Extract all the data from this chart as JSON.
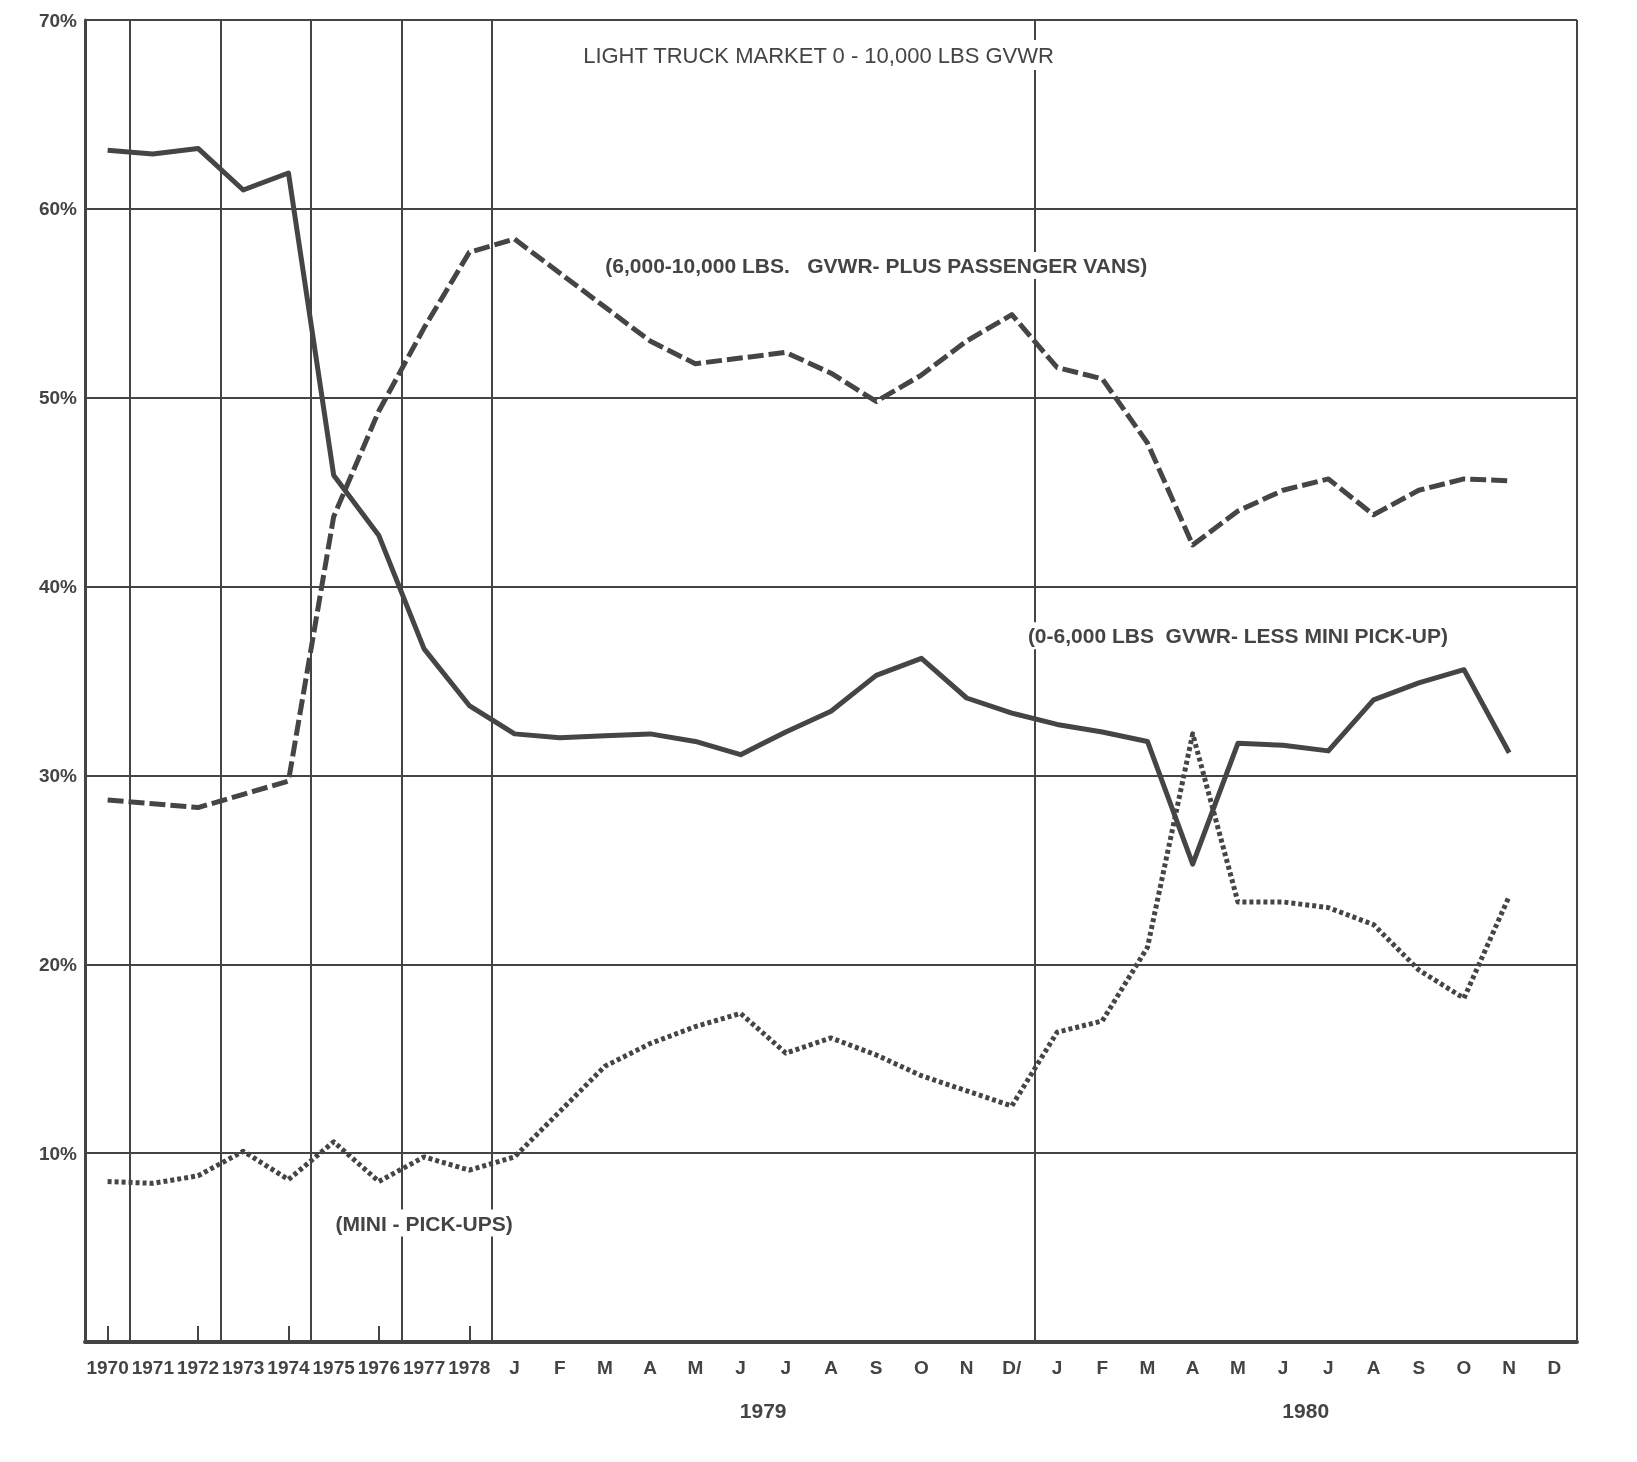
{
  "chart_data": {
    "type": "line",
    "title": "LIGHT TRUCK MARKET 0 - 10,000 LBS GVWR",
    "categories": [
      "1970",
      "1971",
      "1972",
      "1973",
      "1974",
      "1975",
      "1976",
      "1977",
      "1978",
      "J",
      "F",
      "M",
      "A",
      "M",
      "J",
      "J",
      "A",
      "S",
      "O",
      "N",
      "D/",
      "J",
      "F",
      "M",
      "A",
      "M",
      "J",
      "J",
      "A",
      "S",
      "O",
      "N",
      "D"
    ],
    "series": [
      {
        "name": "(6,000-10,000 LBS.   GVWR- PLUS PASSENGER VANS)",
        "color": "#454545",
        "line_style": "dashed",
        "values": [
          28.7,
          28.5,
          28.3,
          29.0,
          29.7,
          43.7,
          49.3,
          53.7,
          57.7,
          58.4,
          56.6,
          54.8,
          53.0,
          51.8,
          52.1,
          52.4,
          51.3,
          49.8,
          51.2,
          53.0,
          54.4,
          51.6,
          51.0,
          47.6,
          42.2,
          44.0,
          45.1,
          45.7,
          43.8,
          45.1,
          45.7,
          45.6,
          null
        ]
      },
      {
        "name": "(0-6,000 LBS  GVWR- LESS MINI PICK-UP)",
        "color": "#454545",
        "line_style": "solid",
        "values": [
          63.1,
          62.9,
          63.2,
          61.0,
          61.9,
          45.9,
          42.7,
          36.7,
          33.7,
          32.2,
          32.0,
          32.1,
          32.2,
          31.8,
          31.1,
          32.3,
          33.4,
          35.3,
          36.2,
          34.1,
          33.3,
          32.7,
          32.3,
          31.8,
          25.3,
          31.7,
          31.6,
          31.3,
          34.0,
          34.9,
          35.6,
          31.2,
          null
        ]
      },
      {
        "name": "(MINI - PICK-UPS)",
        "color": "#454545",
        "line_style": "dotted",
        "values": [
          8.5,
          8.4,
          8.8,
          10.1,
          8.6,
          10.6,
          8.5,
          9.8,
          9.1,
          9.8,
          12.2,
          14.6,
          15.8,
          16.7,
          17.4,
          15.3,
          16.1,
          15.2,
          14.1,
          13.3,
          12.5,
          16.4,
          17.0,
          20.9,
          32.2,
          23.3,
          23.3,
          23.0,
          22.1,
          19.7,
          18.2,
          23.6,
          null
        ]
      }
    ],
    "ylim": [
      0,
      70
    ],
    "yticks": [
      {
        "value": 0,
        "label": null
      },
      {
        "value": 10,
        "label": "10%"
      },
      {
        "value": 20,
        "label": "20%"
      },
      {
        "value": 30,
        "label": "30%"
      },
      {
        "value": 40,
        "label": "40%"
      },
      {
        "value": 50,
        "label": "50%"
      },
      {
        "value": 60,
        "label": "60%"
      },
      {
        "value": 70,
        "label": "70%"
      }
    ],
    "annotations": [
      "1979",
      "1980"
    ],
    "grid": true,
    "legend": false,
    "marker": "none"
  }
}
